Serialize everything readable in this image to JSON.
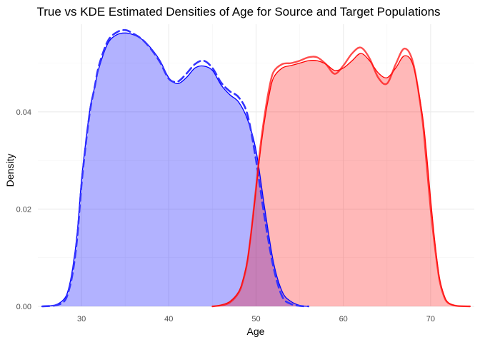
{
  "chart_data": {
    "type": "area",
    "title": "True vs KDE Estimated Densities of Age for Source and Target Populations",
    "xlabel": "Age",
    "ylabel": "Density",
    "xlim": [
      25,
      75
    ],
    "ylim": [
      0,
      0.058
    ],
    "x_ticks": [
      30,
      40,
      50,
      60,
      70
    ],
    "y_ticks": [
      0.0,
      0.02,
      0.04
    ],
    "x_tick_labels": [
      "30",
      "40",
      "50",
      "60",
      "70"
    ],
    "y_tick_labels": [
      "0.00",
      "0.02",
      "0.04"
    ],
    "grid": true,
    "legend": "none",
    "series": [
      {
        "group": "source",
        "kind": "kde-filled",
        "fill": "#0000ff",
        "fill_opacity": 0.3,
        "line": "#0000ff",
        "dash": false,
        "x": [
          25.5,
          27,
          28,
          28.5,
          29,
          29.5,
          30,
          30.5,
          31,
          31.5,
          32,
          33,
          34,
          35,
          36,
          37,
          38,
          39,
          40,
          41,
          42,
          43,
          44,
          45,
          46,
          47,
          48,
          49,
          50,
          51,
          52,
          53,
          54,
          55,
          56
        ],
        "y": [
          0.0,
          0.0003,
          0.0015,
          0.0035,
          0.008,
          0.015,
          0.026,
          0.034,
          0.041,
          0.045,
          0.049,
          0.054,
          0.0558,
          0.0562,
          0.0558,
          0.0548,
          0.053,
          0.0505,
          0.047,
          0.0458,
          0.047,
          0.049,
          0.0494,
          0.0485,
          0.0455,
          0.0435,
          0.042,
          0.0385,
          0.032,
          0.02,
          0.009,
          0.003,
          0.001,
          0.0002,
          0.0
        ]
      },
      {
        "group": "source",
        "kind": "true-dashed",
        "line": "#3333ff",
        "dash": true,
        "x": [
          25.5,
          27,
          28,
          28.5,
          29,
          29.5,
          30,
          30.5,
          31,
          31.5,
          32,
          33,
          34,
          35,
          36,
          37,
          38,
          39,
          40,
          41,
          42,
          43,
          44,
          45,
          46,
          47,
          48,
          49,
          50,
          51,
          52,
          53,
          54,
          55,
          56
        ],
        "y": [
          0.0,
          0.0002,
          0.001,
          0.003,
          0.007,
          0.014,
          0.025,
          0.0335,
          0.0405,
          0.045,
          0.0495,
          0.0545,
          0.0563,
          0.0568,
          0.056,
          0.0548,
          0.0528,
          0.0502,
          0.0468,
          0.0462,
          0.0478,
          0.0498,
          0.0505,
          0.049,
          0.046,
          0.0442,
          0.043,
          0.0395,
          0.03,
          0.018,
          0.008,
          0.002,
          0.0005,
          0.0001,
          0.0
        ]
      },
      {
        "group": "target",
        "kind": "kde-filled",
        "fill": "#ff0000",
        "fill_opacity": 0.28,
        "line": "#ff0000",
        "dash": false,
        "x": [
          45,
          46,
          47,
          48,
          48.5,
          49,
          49.5,
          50,
          50.5,
          51,
          51.5,
          52,
          53,
          54,
          55,
          56,
          57,
          58,
          59,
          60,
          61,
          62,
          63,
          64,
          65,
          66,
          67,
          68,
          69,
          69.5,
          70,
          70.5,
          71,
          71.5,
          72,
          73,
          74.5
        ],
        "y": [
          0.0,
          0.0003,
          0.001,
          0.003,
          0.0055,
          0.0095,
          0.016,
          0.024,
          0.032,
          0.0385,
          0.0435,
          0.047,
          0.049,
          0.0495,
          0.05,
          0.0505,
          0.0505,
          0.0498,
          0.0485,
          0.049,
          0.0505,
          0.052,
          0.0505,
          0.048,
          0.047,
          0.049,
          0.0515,
          0.0495,
          0.04,
          0.032,
          0.022,
          0.013,
          0.006,
          0.0025,
          0.0008,
          0.0001,
          0.0
        ]
      },
      {
        "group": "target",
        "kind": "true",
        "line": "#ff1111",
        "dash": false,
        "x": [
          45,
          46,
          47,
          48,
          48.5,
          49,
          49.5,
          50,
          50.5,
          51,
          51.5,
          52,
          53,
          54,
          55,
          56,
          57,
          58,
          59,
          60,
          61,
          62,
          63,
          64,
          65,
          66,
          67,
          68,
          69,
          69.5,
          70,
          70.5,
          71,
          71.5,
          72,
          73,
          74.5
        ],
        "y": [
          0.0,
          0.0002,
          0.0008,
          0.0028,
          0.0052,
          0.0092,
          0.0162,
          0.0245,
          0.033,
          0.0395,
          0.0448,
          0.0482,
          0.0498,
          0.05,
          0.0505,
          0.0512,
          0.0512,
          0.0498,
          0.0478,
          0.0495,
          0.052,
          0.0532,
          0.051,
          0.047,
          0.0458,
          0.0498,
          0.053,
          0.05,
          0.0392,
          0.03,
          0.02,
          0.012,
          0.0055,
          0.0022,
          0.0007,
          0.0001,
          0.0
        ]
      }
    ]
  }
}
